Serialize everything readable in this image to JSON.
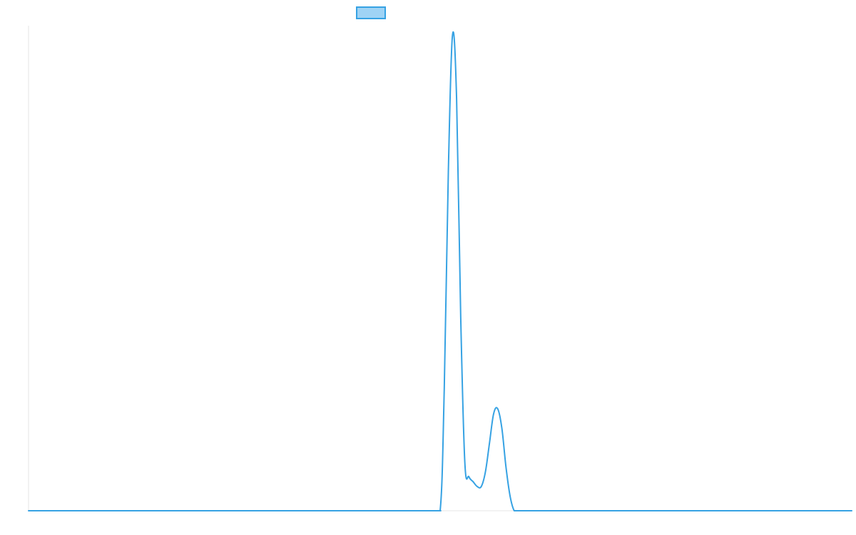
{
  "chart_data": {
    "type": "line",
    "title": "",
    "xlabel": "",
    "ylabel": "",
    "xlim": [
      0,
      1000
    ],
    "ylim": [
      0,
      1
    ],
    "grid": false,
    "legend": {
      "placement": "top-center",
      "entries": [
        {
          "label": "",
          "color": "#36a2e3",
          "fill": "#9fd3f5"
        }
      ]
    },
    "series": [
      {
        "color": "#36a2e3",
        "x": [
          0,
          100,
          200,
          300,
          400,
          490,
          500,
          505,
          510,
          515,
          520,
          525,
          530,
          535,
          540,
          545,
          550,
          555,
          560,
          565,
          570,
          575,
          580,
          585,
          590,
          595,
          600,
          605,
          610,
          620,
          700,
          800,
          900,
          1000
        ],
        "y": [
          0,
          0,
          0,
          0,
          0,
          0,
          0,
          0.25,
          0.7,
          0.98,
          0.85,
          0.4,
          0.1,
          0.07,
          0.06,
          0.05,
          0.05,
          0.08,
          0.14,
          0.2,
          0.21,
          0.17,
          0.09,
          0.03,
          0,
          0,
          0,
          0,
          0,
          0,
          0,
          0,
          0,
          0
        ]
      }
    ]
  }
}
